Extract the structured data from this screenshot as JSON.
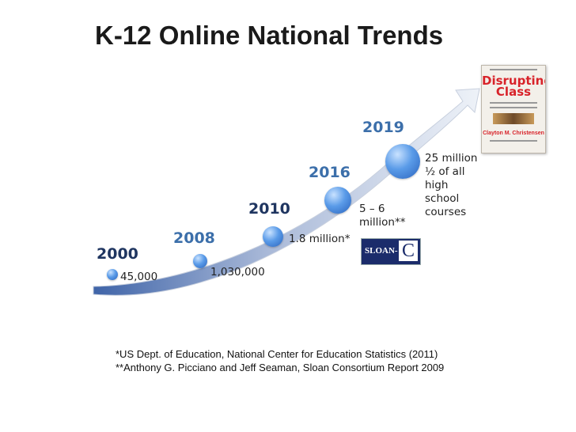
{
  "title": "K-12 Online National Trends",
  "milestones": [
    {
      "year": "2000",
      "value": "45,000"
    },
    {
      "year": "2008",
      "value": "1,030,000"
    },
    {
      "year": "2010",
      "value": "1.8 million*"
    },
    {
      "year": "2016",
      "value_lines": [
        "5 – 6",
        "million**"
      ]
    },
    {
      "year": "2019",
      "value_lines": [
        "25 million",
        "½ of all",
        "high",
        "school",
        "courses"
      ]
    }
  ],
  "book": {
    "title_line1": "Disrupting",
    "title_line2": "Class",
    "author": "Clayton M. Christensen"
  },
  "sloan_logo": {
    "text": "SLOAN-",
    "letter": "C"
  },
  "footnotes": [
    "*US Dept. of Education, National Center for Education Statistics (2011)",
    "**Anthony G. Picciano and Jeff Seaman, Sloan Consortium Report 2009"
  ],
  "colors": {
    "year_blue": "#3c6faa",
    "year_dark": "#1f3560",
    "book_red": "#d8232a",
    "sloan_navy": "#1b2c6b"
  }
}
